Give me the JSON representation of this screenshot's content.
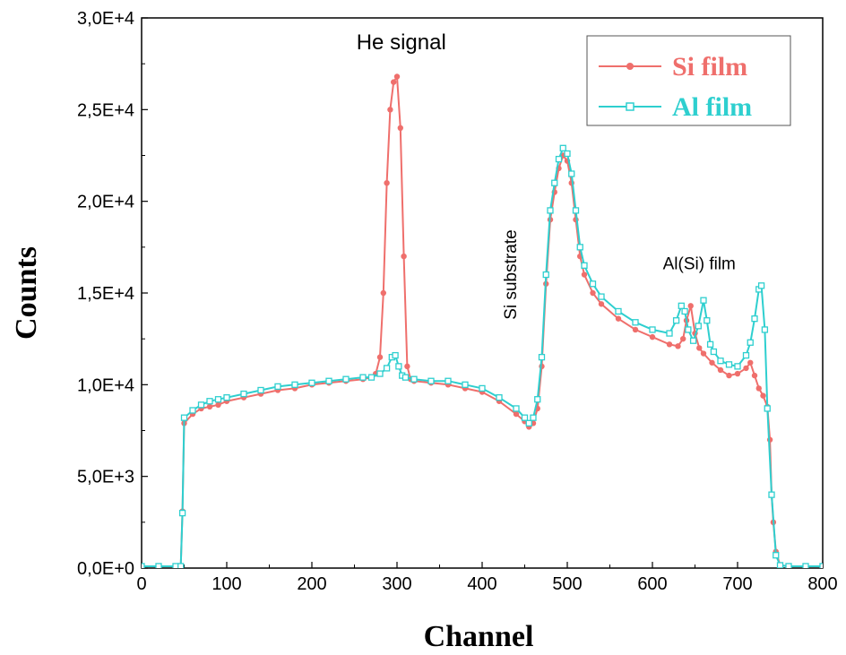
{
  "chart_data": {
    "type": "line",
    "xlabel": "Channel",
    "ylabel": "Counts",
    "xlim": [
      0,
      800
    ],
    "ylim": [
      0,
      30000
    ],
    "xticks": [
      0,
      100,
      200,
      300,
      400,
      500,
      600,
      700,
      800
    ],
    "xtick_labels": [
      "0",
      "100",
      "200",
      "300",
      "400",
      "500",
      "600",
      "700",
      "800"
    ],
    "yticks": [
      0,
      5000,
      10000,
      15000,
      20000,
      25000,
      30000
    ],
    "ytick_labels": [
      "0,0E+0",
      "5,0E+3",
      "1,0E+4",
      "1,5E+4",
      "2,0E+4",
      "2,5E+4",
      "3,0E+4"
    ],
    "grid": false,
    "legend_position": "top-right",
    "annotations": [
      {
        "text": "He signal",
        "x": 305,
        "y": 28300,
        "rotate": false,
        "size": 24
      },
      {
        "text": "Si substrate",
        "x": 440,
        "y": 16000,
        "rotate": true,
        "size": 19
      },
      {
        "text": "Al(Si) film",
        "x": 655,
        "y": 16300,
        "rotate": false,
        "size": 19
      }
    ],
    "series": [
      {
        "name": "Si film",
        "color": "#EF6F6C",
        "marker": "circle",
        "x": [
          0,
          20,
          40,
          46,
          48,
          50,
          60,
          70,
          80,
          90,
          100,
          120,
          140,
          160,
          180,
          200,
          220,
          240,
          260,
          270,
          275,
          280,
          284,
          288,
          292,
          296,
          300,
          304,
          308,
          312,
          316,
          320,
          340,
          360,
          380,
          400,
          420,
          440,
          450,
          455,
          460,
          465,
          470,
          475,
          480,
          485,
          490,
          495,
          500,
          505,
          510,
          515,
          520,
          530,
          540,
          560,
          580,
          600,
          620,
          630,
          636,
          640,
          645,
          650,
          655,
          660,
          670,
          680,
          690,
          700,
          710,
          715,
          720,
          725,
          730,
          735,
          738,
          740,
          742,
          745,
          750,
          760,
          780,
          800
        ],
        "y": [
          100,
          100,
          100,
          100,
          3100,
          7900,
          8400,
          8700,
          8800,
          8900,
          9100,
          9300,
          9500,
          9700,
          9800,
          10000,
          10100,
          10200,
          10300,
          10400,
          10600,
          11500,
          15000,
          21000,
          25000,
          26500,
          26800,
          24000,
          17000,
          11000,
          10300,
          10200,
          10100,
          10000,
          9800,
          9600,
          9100,
          8400,
          8000,
          7700,
          7900,
          8700,
          11000,
          15500,
          19000,
          20500,
          21800,
          22500,
          22200,
          21000,
          19000,
          17000,
          16000,
          15000,
          14400,
          13600,
          13000,
          12600,
          12200,
          12100,
          12500,
          13500,
          14300,
          12800,
          12000,
          11700,
          11200,
          10800,
          10500,
          10600,
          10900,
          11200,
          10500,
          9800,
          9400,
          8800,
          7000,
          4000,
          2500,
          900,
          150,
          100,
          100,
          100
        ]
      },
      {
        "name": "Al film",
        "color": "#2ECFCF",
        "marker": "square",
        "x": [
          0,
          20,
          40,
          46,
          48,
          50,
          60,
          70,
          80,
          90,
          100,
          120,
          140,
          160,
          180,
          200,
          220,
          240,
          260,
          270,
          280,
          288,
          294,
          298,
          302,
          306,
          310,
          320,
          340,
          360,
          380,
          400,
          420,
          440,
          450,
          455,
          460,
          465,
          470,
          475,
          480,
          485,
          490,
          495,
          500,
          505,
          510,
          515,
          520,
          530,
          540,
          560,
          580,
          600,
          620,
          628,
          634,
          638,
          642,
          648,
          654,
          660,
          664,
          668,
          672,
          680,
          690,
          700,
          710,
          715,
          720,
          725,
          728,
          732,
          735,
          740,
          745,
          750,
          760,
          780,
          800
        ],
        "y": [
          100,
          100,
          100,
          100,
          3000,
          8200,
          8600,
          8900,
          9100,
          9200,
          9300,
          9500,
          9700,
          9900,
          10000,
          10100,
          10200,
          10300,
          10400,
          10400,
          10600,
          10900,
          11500,
          11600,
          11000,
          10500,
          10400,
          10300,
          10200,
          10200,
          10000,
          9800,
          9300,
          8700,
          8200,
          7900,
          8200,
          9200,
          11500,
          16000,
          19500,
          21000,
          22300,
          22900,
          22600,
          21500,
          19500,
          17500,
          16500,
          15500,
          14800,
          14000,
          13400,
          13000,
          12800,
          13500,
          14300,
          14000,
          13000,
          12400,
          13200,
          14600,
          13500,
          12200,
          11800,
          11300,
          11100,
          11000,
          11600,
          12300,
          13600,
          15200,
          15400,
          13000,
          8700,
          4000,
          700,
          150,
          100,
          100,
          100
        ]
      }
    ]
  }
}
